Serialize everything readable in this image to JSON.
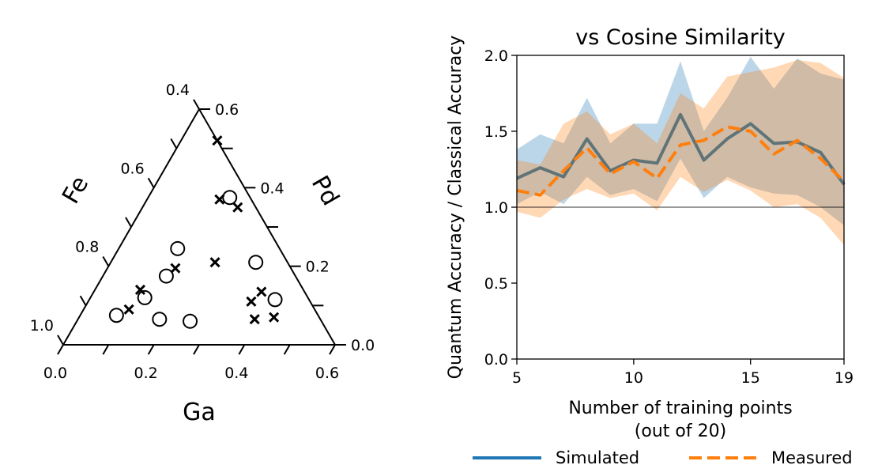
{
  "chart_data": [
    {
      "type": "ternary_scatter",
      "axes": {
        "bottom": {
          "label": "Ga",
          "ticks": [
            "0.0",
            "0.2",
            "0.4",
            "0.6"
          ],
          "range": [
            0.0,
            0.6
          ]
        },
        "right": {
          "label": "Pd",
          "ticks": [
            "0.0",
            "0.2",
            "0.4",
            "0.6"
          ],
          "range": [
            0.0,
            0.6
          ]
        },
        "left": {
          "label": "Fe",
          "ticks": [
            "1.0",
            "0.8",
            "0.6",
            "0.4"
          ],
          "range": [
            0.4,
            1.0
          ]
        }
      },
      "series": [
        {
          "marker": "x",
          "points": [
            {
              "ga": 0.08,
              "pd": 0.52
            },
            {
              "ga": 0.16,
              "pd": 0.37
            },
            {
              "ga": 0.21,
              "pd": 0.35
            },
            {
              "ga": 0.15,
              "pd": 0.195
            },
            {
              "ga": 0.23,
              "pd": 0.21
            },
            {
              "ga": 0.1,
              "pd": 0.14
            },
            {
              "ga": 0.1,
              "pd": 0.09
            },
            {
              "ga": 0.36,
              "pd": 0.11
            },
            {
              "ga": 0.37,
              "pd": 0.135
            },
            {
              "ga": 0.39,
              "pd": 0.065
            },
            {
              "ga": 0.43,
              "pd": 0.07
            }
          ]
        },
        {
          "marker": "o",
          "points": [
            {
              "ga": 0.18,
              "pd": 0.375
            },
            {
              "ga": 0.13,
              "pd": 0.245
            },
            {
              "ga": 0.14,
              "pd": 0.175
            },
            {
              "ga": 0.12,
              "pd": 0.12
            },
            {
              "ga": 0.08,
              "pd": 0.075
            },
            {
              "ga": 0.18,
              "pd": 0.065
            },
            {
              "ga": 0.25,
              "pd": 0.06
            },
            {
              "ga": 0.32,
              "pd": 0.21
            },
            {
              "ga": 0.41,
              "pd": 0.115
            }
          ]
        }
      ]
    },
    {
      "type": "line",
      "title": "vs Cosine Similarity",
      "xlabel": "Number of training points",
      "xlabel_line2": "(out of 20)",
      "ylabel": "Quantum Accuracy / Classical Accuracy",
      "xlim": [
        5,
        19
      ],
      "ylim": [
        0.0,
        2.0
      ],
      "xticks": [
        5,
        10,
        15,
        19
      ],
      "yticks": [
        "0.0",
        "0.5",
        "1.0",
        "1.5",
        "2.0"
      ],
      "reference_line": 1.0,
      "x": [
        5,
        6,
        7,
        8,
        9,
        10,
        11,
        12,
        13,
        14,
        15,
        16,
        17,
        18,
        19
      ],
      "series": [
        {
          "name": "Simulated",
          "color": "#1f77b4",
          "style": "solid",
          "values": [
            1.19,
            1.26,
            1.2,
            1.45,
            1.24,
            1.31,
            1.29,
            1.61,
            1.31,
            1.45,
            1.55,
            1.42,
            1.43,
            1.36,
            1.15
          ],
          "upper": [
            1.38,
            1.48,
            1.42,
            1.72,
            1.42,
            1.55,
            1.55,
            1.96,
            1.5,
            1.72,
            1.99,
            1.78,
            1.98,
            1.88,
            1.84
          ],
          "lower": [
            1.02,
            1.1,
            1.02,
            1.2,
            1.08,
            1.12,
            1.04,
            1.32,
            1.06,
            1.2,
            1.13,
            1.09,
            1.08,
            1.0,
            0.88
          ]
        },
        {
          "name": "Measured",
          "color": "#ff7f0e",
          "style": "dashed",
          "values": [
            1.11,
            1.08,
            1.24,
            1.39,
            1.22,
            1.3,
            1.19,
            1.41,
            1.44,
            1.53,
            1.5,
            1.35,
            1.44,
            1.32,
            1.17
          ],
          "upper": [
            1.31,
            1.28,
            1.55,
            1.63,
            1.48,
            1.55,
            1.42,
            1.75,
            1.65,
            1.86,
            1.89,
            1.92,
            1.97,
            1.95,
            1.85
          ],
          "lower": [
            0.97,
            0.93,
            1.05,
            1.12,
            1.06,
            1.09,
            0.98,
            1.2,
            1.1,
            1.18,
            1.11,
            1.0,
            1.02,
            0.93,
            0.75
          ]
        }
      ],
      "legend_placement": "bottom"
    }
  ]
}
